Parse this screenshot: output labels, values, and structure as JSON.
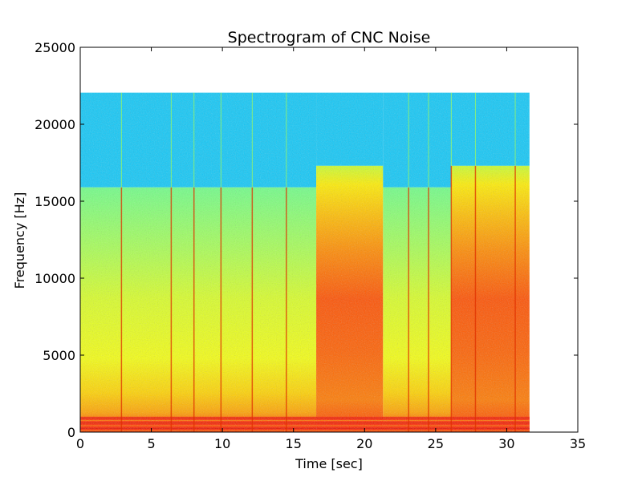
{
  "chart_data": {
    "type": "heatmap",
    "title": "Spectrogram of CNC Noise",
    "xlabel": "Time [sec]",
    "ylabel": "Frequency [Hz]",
    "xlim": [
      0,
      35
    ],
    "ylim": [
      0,
      25000
    ],
    "x_ticks": [
      0,
      5,
      10,
      15,
      20,
      25,
      30,
      35
    ],
    "y_ticks": [
      0,
      5000,
      10000,
      15000,
      20000,
      25000
    ],
    "data_extent": {
      "time_sec": [
        0,
        31.6
      ],
      "frequency_hz": [
        0,
        22050
      ]
    },
    "grid": false,
    "legend": "none",
    "colormap": "jet",
    "colormap_stops": [
      "#00008f",
      "#0000ff",
      "#00ffff",
      "#7fff7f",
      "#ffff00",
      "#ff7f00",
      "#ff0000",
      "#7f0000"
    ],
    "segments": [
      {
        "start_sec": 0.0,
        "end_sec": 16.6,
        "cutoff_hz": 15900,
        "level": "medium"
      },
      {
        "start_sec": 16.6,
        "end_sec": 21.3,
        "cutoff_hz": 17300,
        "level": "high"
      },
      {
        "start_sec": 21.3,
        "end_sec": 26.1,
        "cutoff_hz": 15900,
        "level": "medium"
      },
      {
        "start_sec": 26.1,
        "end_sec": 31.6,
        "cutoff_hz": 17300,
        "level": "high"
      }
    ],
    "low_frequency_band_hz": [
      0,
      1000
    ],
    "transient_lines_sec": [
      2.9,
      6.4,
      8.0,
      9.9,
      12.1,
      14.5,
      23.1,
      24.5,
      26.1,
      27.8,
      30.6
    ]
  }
}
